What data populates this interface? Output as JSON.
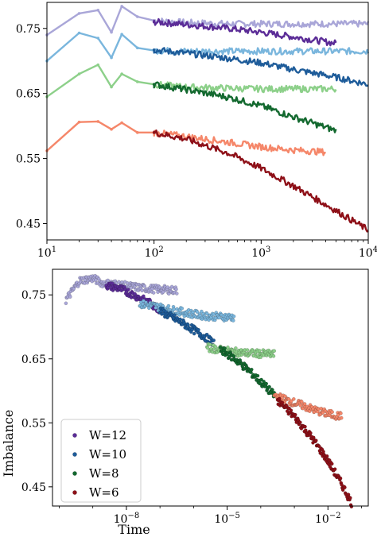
{
  "chart_data": [
    {
      "type": "line",
      "title": "",
      "xlabel": "",
      "ylabel": "",
      "xscale": "log",
      "xlim": [
        10,
        10000
      ],
      "ylim": [
        0.425,
        0.79
      ],
      "x_ticks": [
        {
          "value": 10,
          "base": "10",
          "exp": "1"
        },
        {
          "value": 100,
          "base": "10",
          "exp": "2"
        },
        {
          "value": 1000,
          "base": "10",
          "exp": "3"
        },
        {
          "value": 10000,
          "base": "10",
          "exp": "4"
        }
      ],
      "y_ticks": [
        {
          "value": 0.75,
          "label": "0.75"
        },
        {
          "value": 0.65,
          "label": "0.65"
        },
        {
          "value": 0.55,
          "label": "0.55"
        },
        {
          "value": 0.45,
          "label": "0.45"
        }
      ],
      "grid": false,
      "series": [
        {
          "color": "#a9a6d8",
          "x": [
            10,
            20,
            30,
            40,
            50,
            70,
            100,
            200,
            500,
            1000,
            2000,
            5000,
            10000
          ],
          "y": [
            0.74,
            0.773,
            0.778,
            0.744,
            0.784,
            0.768,
            0.762,
            0.759,
            0.757,
            0.757,
            0.757,
            0.757,
            0.757
          ]
        },
        {
          "color": "#5b2c97",
          "x": [
            100,
            200,
            500,
            1000,
            2000,
            5000
          ],
          "y": [
            0.76,
            0.756,
            0.75,
            0.744,
            0.737,
            0.727
          ]
        },
        {
          "color": "#7ab6dd",
          "x": [
            10,
            20,
            30,
            40,
            50,
            70,
            100,
            200,
            500,
            1000,
            2000,
            5000,
            10000
          ],
          "y": [
            0.7,
            0.743,
            0.735,
            0.705,
            0.741,
            0.72,
            0.716,
            0.715,
            0.715,
            0.715,
            0.715,
            0.715,
            0.715
          ]
        },
        {
          "color": "#1e5c9a",
          "x": [
            100,
            200,
            500,
            1000,
            2000,
            5000,
            10000
          ],
          "y": [
            0.717,
            0.712,
            0.704,
            0.697,
            0.687,
            0.675,
            0.664
          ]
        },
        {
          "color": "#8dd08a",
          "x": [
            10,
            20,
            30,
            40,
            50,
            70,
            100,
            200,
            500,
            1000,
            2000,
            5000
          ],
          "y": [
            0.645,
            0.68,
            0.694,
            0.66,
            0.68,
            0.668,
            0.664,
            0.66,
            0.658,
            0.657,
            0.657,
            0.657
          ]
        },
        {
          "color": "#13692f",
          "x": [
            100,
            200,
            500,
            1000,
            2000,
            5000
          ],
          "y": [
            0.664,
            0.656,
            0.644,
            0.631,
            0.614,
            0.593
          ]
        },
        {
          "color": "#f5876a",
          "x": [
            10,
            20,
            30,
            40,
            50,
            70,
            100,
            200,
            500,
            1000,
            2000,
            4000
          ],
          "y": [
            0.562,
            0.606,
            0.607,
            0.595,
            0.605,
            0.59,
            0.59,
            0.584,
            0.575,
            0.568,
            0.563,
            0.56
          ]
        },
        {
          "color": "#8e1018",
          "x": [
            100,
            200,
            500,
            1000,
            2000,
            5000,
            10000
          ],
          "y": [
            0.59,
            0.58,
            0.558,
            0.535,
            0.508,
            0.47,
            0.44
          ]
        }
      ]
    },
    {
      "type": "scatter",
      "title": "",
      "xlabel": "Time",
      "ylabel": "Imbalance",
      "xscale": "log",
      "xlim": [
        -10.2,
        -0.8
      ],
      "ylim": [
        0.42,
        0.79
      ],
      "x_ticks": [
        {
          "value": -8,
          "base": "10",
          "exp": "−8"
        },
        {
          "value": -5,
          "base": "10",
          "exp": "−5"
        },
        {
          "value": -2,
          "base": "10",
          "exp": "−2"
        }
      ],
      "y_ticks": [
        {
          "value": 0.75,
          "label": "0.75"
        },
        {
          "value": 0.65,
          "label": "0.65"
        },
        {
          "value": 0.55,
          "label": "0.55"
        },
        {
          "value": 0.45,
          "label": "0.45"
        }
      ],
      "grid": false,
      "legend": "bottom-left",
      "series": [
        {
          "name": "W=12",
          "color": "#a9a6d8",
          "x": [
            -9.8,
            -9.4,
            -9.0,
            -8.7,
            -8.3,
            -8.0,
            -7.7,
            -7.4,
            -7.1,
            -6.8,
            -6.5
          ],
          "y": [
            0.742,
            0.772,
            0.776,
            0.768,
            0.767,
            0.764,
            0.762,
            0.76,
            0.759,
            0.758,
            0.757
          ]
        },
        {
          "name": "W=12",
          "color": "#5b2c97",
          "x": [
            -8.6,
            -8.2,
            -7.9,
            -7.6,
            -7.3,
            -7.0
          ],
          "y": [
            0.765,
            0.76,
            0.753,
            0.745,
            0.737,
            0.727
          ]
        },
        {
          "name": "W=10",
          "color": "#7ab6dd",
          "x": [
            -7.6,
            -7.2,
            -6.8,
            -6.4,
            -6.0,
            -5.6,
            -5.2,
            -4.8
          ],
          "y": [
            0.736,
            0.733,
            0.728,
            0.724,
            0.72,
            0.717,
            0.716,
            0.715
          ]
        },
        {
          "name": "W=10",
          "color": "#1e5c9a",
          "x": [
            -7.0,
            -6.6,
            -6.2,
            -5.8,
            -5.4
          ],
          "y": [
            0.725,
            0.714,
            0.702,
            0.689,
            0.675
          ]
        },
        {
          "name": "W=8",
          "color": "#8dd08a",
          "x": [
            -5.6,
            -5.2,
            -4.8,
            -4.4,
            -4.0,
            -3.6
          ],
          "y": [
            0.668,
            0.664,
            0.661,
            0.659,
            0.658,
            0.657
          ]
        },
        {
          "name": "W=8",
          "color": "#13692f",
          "x": [
            -5.2,
            -4.8,
            -4.4,
            -4.0,
            -3.6
          ],
          "y": [
            0.665,
            0.651,
            0.634,
            0.614,
            0.593
          ]
        },
        {
          "name": "W=6",
          "color": "#f5876a",
          "x": [
            -3.6,
            -3.2,
            -2.8,
            -2.4,
            -2.0,
            -1.6
          ],
          "y": [
            0.593,
            0.585,
            0.578,
            0.57,
            0.564,
            0.56
          ]
        },
        {
          "name": "W=6",
          "color": "#8e1018",
          "x": [
            -3.5,
            -3.0,
            -2.5,
            -2.0,
            -1.6,
            -1.3
          ],
          "y": [
            0.585,
            0.56,
            0.528,
            0.491,
            0.455,
            0.425
          ]
        }
      ],
      "legend_entries": [
        {
          "label": "W=12",
          "color": "#5b2c97"
        },
        {
          "label": "W=10",
          "color": "#1e5c9a"
        },
        {
          "label": "W=8",
          "color": "#13692f"
        },
        {
          "label": "W=6",
          "color": "#8e1018"
        }
      ]
    }
  ]
}
